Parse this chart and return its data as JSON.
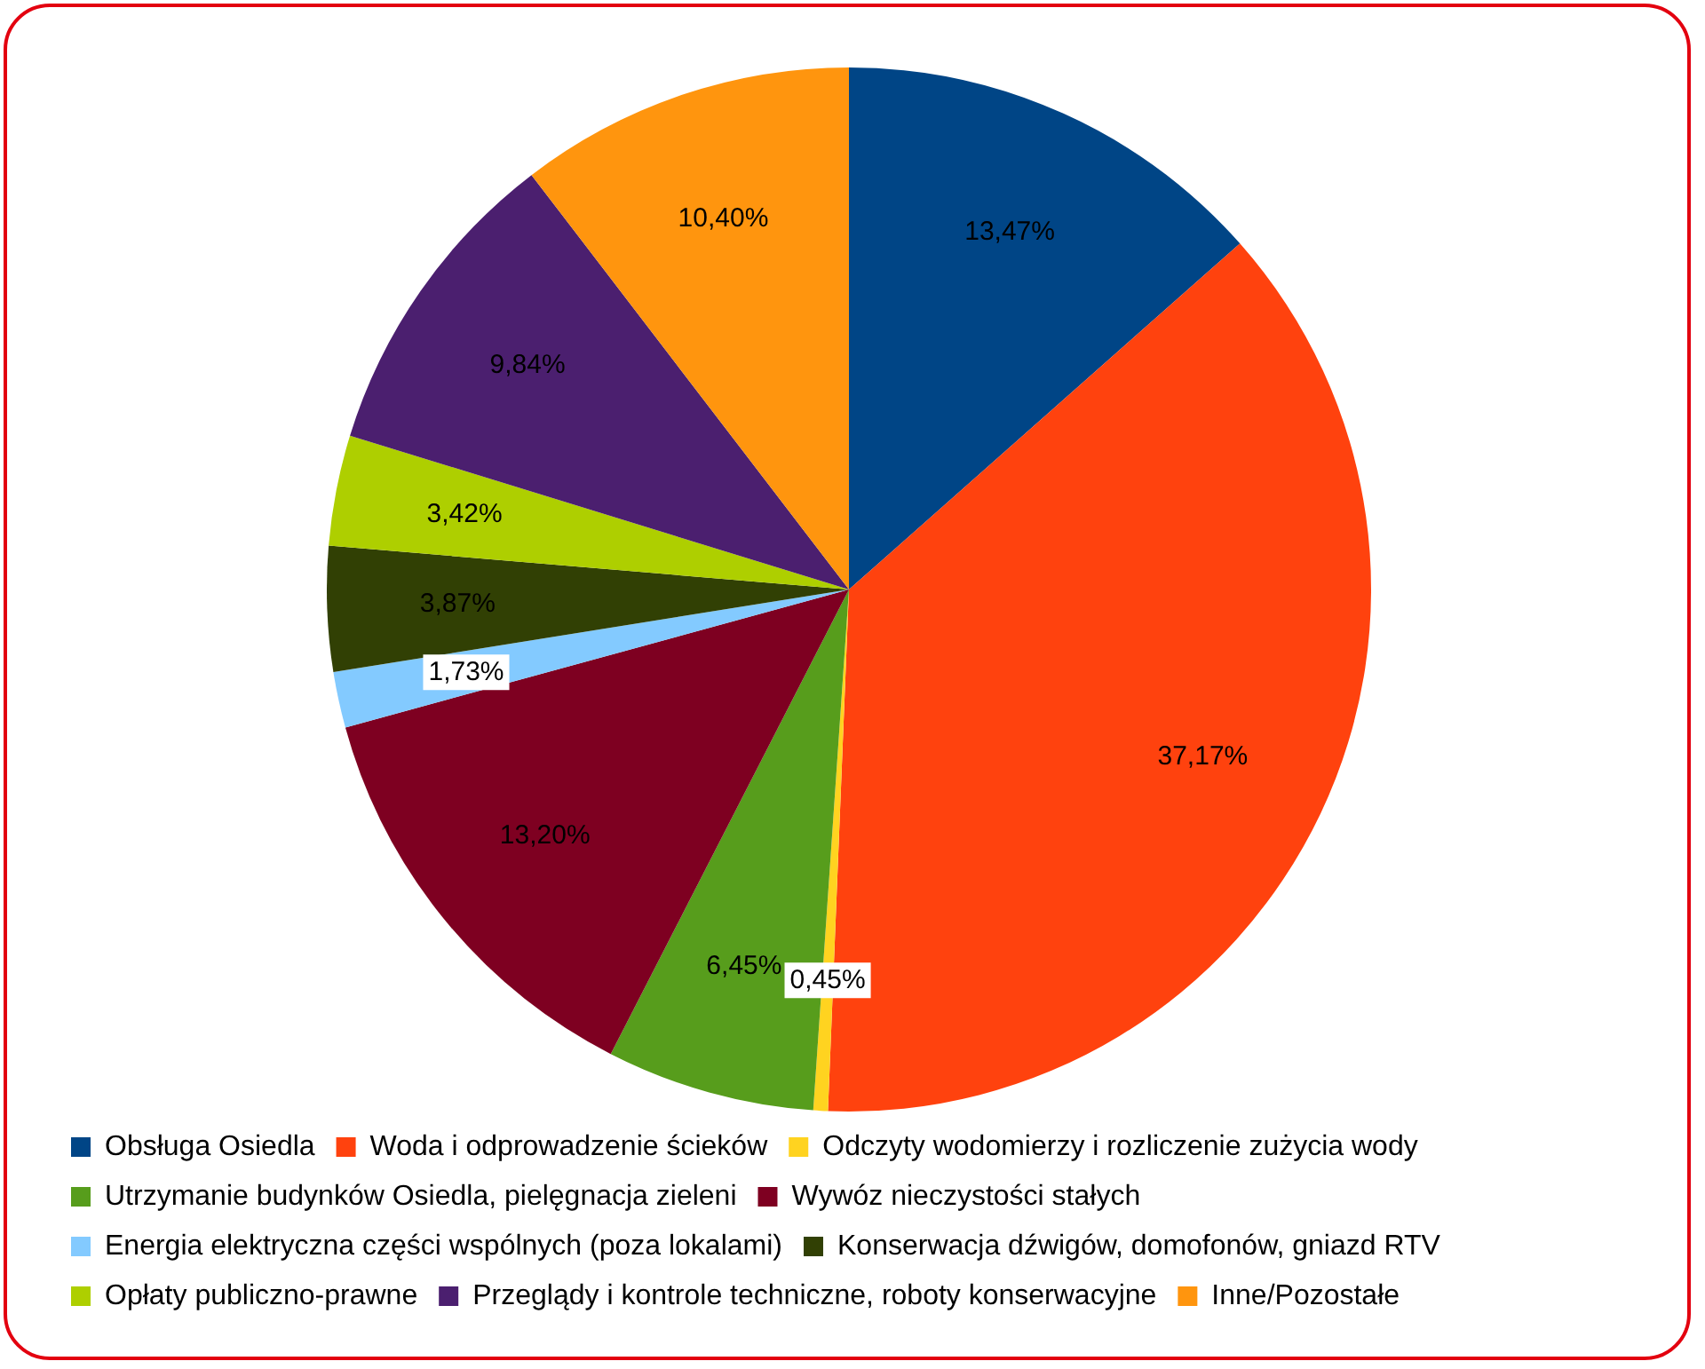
{
  "chart_data": {
    "type": "pie",
    "categories": [
      "Obsługa Osiedla",
      "Woda i odprowadzenie ścieków",
      "Odczyty wodomierzy i rozliczenie zużycia wody",
      "Utrzymanie budynków Osiedla, pielęgnacja zieleni",
      "Wywóz nieczystości stałych",
      "Energia elektryczna części wspólnych (poza lokalami)",
      "Konserwacja dźwigów, domofonów, gniazd RTV",
      "Opłaty publiczno-prawne",
      "Przeglądy i kontrole techniczne, roboty konserwacyjne",
      "Inne/Pozostałe"
    ],
    "values": [
      13.47,
      37.17,
      0.45,
      6.45,
      13.2,
      1.73,
      3.87,
      3.42,
      9.84,
      10.4
    ],
    "value_labels": [
      "13,47%",
      "37,17%",
      "0,45%",
      "6,45%",
      "13,20%",
      "1,73%",
      "3,87%",
      "3,42%",
      "9,84%",
      "10,40%"
    ],
    "colors": [
      "#004586",
      "#ff420e",
      "#ffd320",
      "#579d1c",
      "#7e0021",
      "#83caff",
      "#314004",
      "#aecf00",
      "#4b1f6f",
      "#ff950e"
    ],
    "legend": "bottom"
  }
}
